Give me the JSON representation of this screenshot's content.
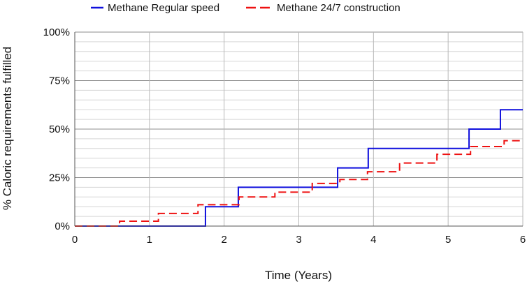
{
  "chart_data": {
    "type": "line",
    "title": "",
    "xlabel": "Time (Years)",
    "ylabel": "% Caloric requirements fulfilled",
    "xlim": [
      0,
      6
    ],
    "ylim": [
      0,
      100
    ],
    "x_ticks": [
      0,
      1,
      2,
      3,
      4,
      5,
      6
    ],
    "y_ticks": [
      0,
      25,
      50,
      75,
      100
    ],
    "x_tick_labels": [
      "0",
      "1",
      "2",
      "3",
      "4",
      "5",
      "6"
    ],
    "y_tick_labels": [
      "0%",
      "25%",
      "50%",
      "75%",
      "100%"
    ],
    "grid": true,
    "minor_y_step": 5,
    "legend_position": "top",
    "series": [
      {
        "name": "Methane Regular speed",
        "color": "#1010dd",
        "dash": "solid",
        "step": true,
        "x": [
          0,
          1.75,
          2.19,
          3.52,
          3.93,
          5.28,
          5.7,
          6.0
        ],
        "y": [
          0,
          10,
          20,
          30,
          40,
          50,
          60,
          60
        ]
      },
      {
        "name": "Methane 24/7 construction",
        "color": "#ee1111",
        "dash": "dashed",
        "step": true,
        "x": [
          0,
          0.6,
          1.12,
          1.65,
          2.2,
          2.68,
          3.18,
          3.55,
          3.92,
          4.35,
          4.85,
          5.3,
          5.75,
          6.0
        ],
        "y": [
          0,
          2.5,
          6.5,
          11,
          15,
          17.5,
          22,
          24,
          28,
          32.5,
          37,
          41,
          44,
          44
        ]
      }
    ]
  }
}
